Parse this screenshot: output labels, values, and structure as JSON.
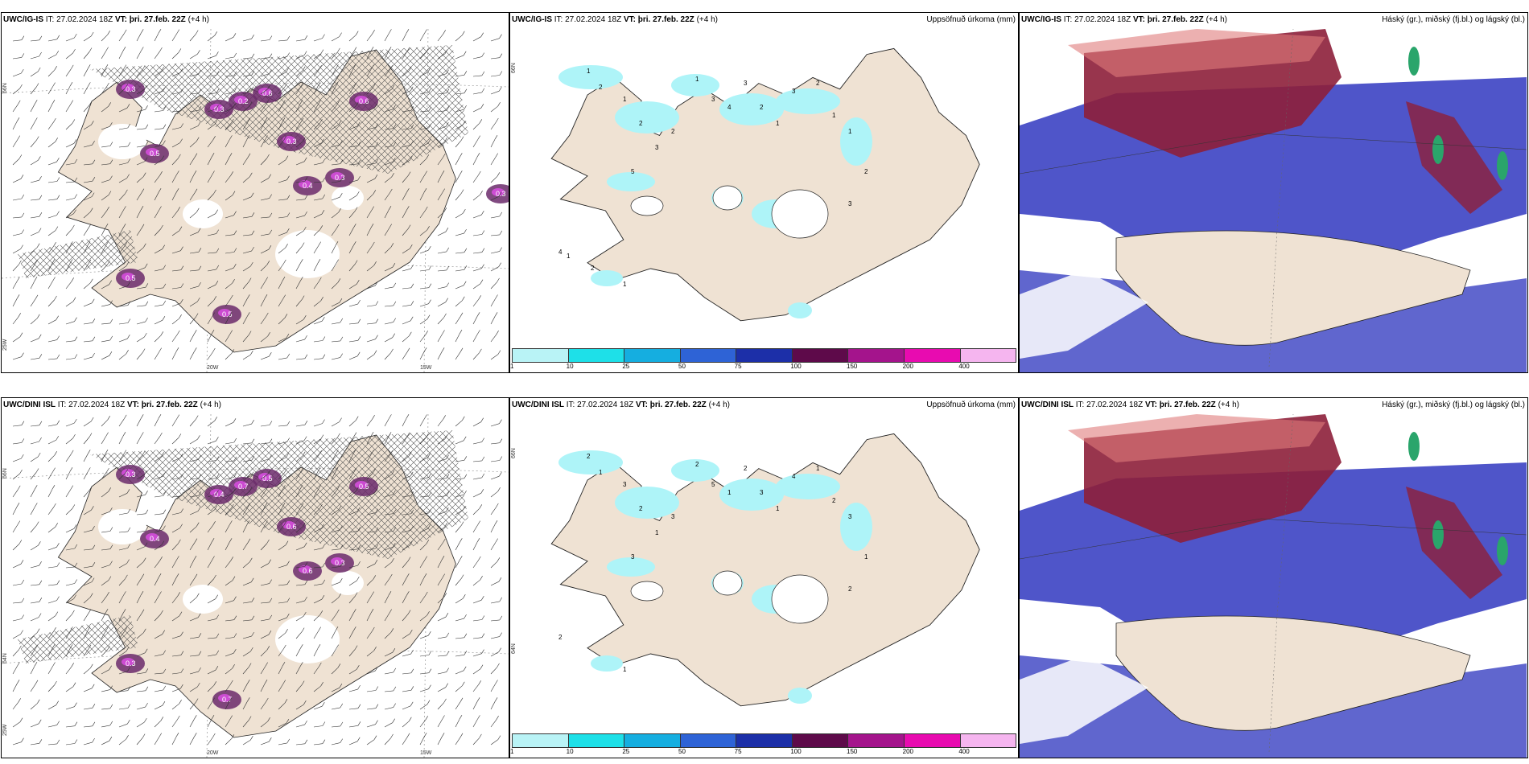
{
  "colors": {
    "land": "#efe2d3",
    "precip_cyan": "#aef4f8",
    "rain_purple": "#6b2a6b",
    "rain_magenta": "#e04ee8",
    "cloud_blue": "#4f55c9",
    "cloud_red": "#8d1f3a",
    "cloud_pink": "#e07b7b",
    "cloud_green": "#2aa56b"
  },
  "rows": [
    {
      "model": "UWC/IG-IS",
      "it_label": "IT:",
      "it_value": "27.02.2024 18Z",
      "vt_label": "VT:",
      "vt_value": "þri. 27.feb. 22Z",
      "lead": "(+4 h)",
      "precip_values": [
        "1",
        "2",
        "1",
        "2",
        "3",
        "2",
        "1",
        "3",
        "4",
        "3",
        "2",
        "1",
        "3",
        "2",
        "1",
        "1",
        "2",
        "3",
        "5",
        "1",
        "4",
        "1",
        "2"
      ],
      "rate_values": [
        "0.3",
        "0.2",
        "0.6",
        "0.5",
        "0.4",
        "0.3",
        "0.5",
        "0.3",
        "0.6",
        "0.5",
        "0.3",
        "0.3"
      ]
    },
    {
      "model": "UWC/DINI ISL",
      "it_label": "IT:",
      "it_value": "27.02.2024 18Z",
      "vt_label": "VT:",
      "vt_value": "þri. 27.feb. 22Z",
      "lead": "(+4 h)",
      "precip_values": [
        "2",
        "1",
        "3",
        "2",
        "1",
        "3",
        "2",
        "5",
        "1",
        "2",
        "3",
        "1",
        "4",
        "1",
        "2",
        "3",
        "1",
        "2",
        "3",
        "1",
        "2"
      ],
      "rate_values": [
        "0.3",
        "0.7",
        "0.5",
        "0.4",
        "0.6",
        "0.3",
        "0.7",
        "0.4",
        "0.5",
        "0.3",
        "0.6"
      ]
    }
  ],
  "precip_title": "Uppsöfnuð úrkoma (mm)",
  "cloud_title": "Háský (gr.), miðský (fj.bl.) og lágský (bl.)",
  "colorbar": {
    "labels": [
      "1",
      "10",
      "25",
      "50",
      "75",
      "100",
      "150",
      "200",
      "400"
    ],
    "colors": [
      "#b9f3f6",
      "#1ee0e8",
      "#15aee0",
      "#2e63d6",
      "#1c2fa8",
      "#5e0a4a",
      "#a4148c",
      "#e80bb0",
      "#f5b5ef"
    ]
  },
  "axes": {
    "lon_labels": [
      "20W",
      "15W"
    ],
    "lat_top": "66N",
    "lat_mid": "64N",
    "lon_left": "25W"
  }
}
